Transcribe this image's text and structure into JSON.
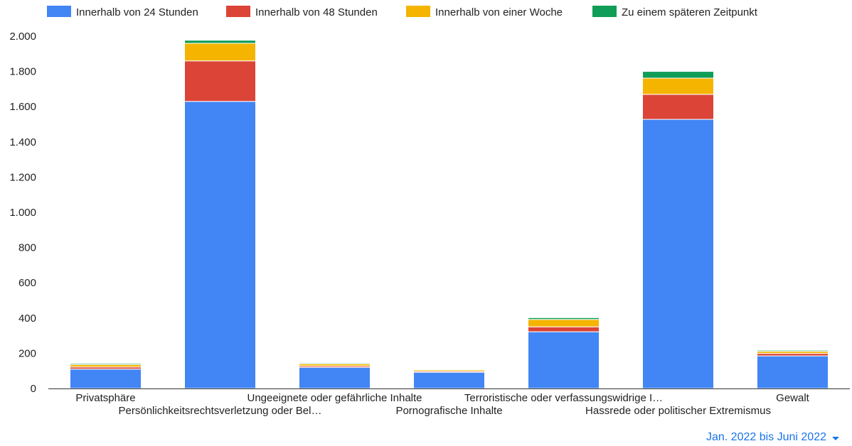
{
  "chart_data": {
    "type": "bar",
    "stacked": true,
    "categories": [
      "Privatsphäre",
      "Persönlichkeitsrechtsverletzung oder Bel…",
      "Ungeeignete oder gefährliche Inhalte",
      "Pornografische Inhalte",
      "Terroristische oder verfassungswidrige I…",
      "Hassrede oder politischer Extremismus",
      "Gewalt"
    ],
    "series": [
      {
        "name": "Innerhalb von 24 Stunden",
        "color": "#4285f4",
        "values": [
          110,
          1630,
          120,
          92,
          322,
          1528,
          185
        ]
      },
      {
        "name": "Innerhalb von 48 Stunden",
        "color": "#db4437",
        "values": [
          12,
          230,
          8,
          6,
          28,
          142,
          14
        ]
      },
      {
        "name": "Innerhalb von einer Woche",
        "color": "#f4b400",
        "values": [
          14,
          100,
          12,
          8,
          42,
          92,
          12
        ]
      },
      {
        "name": "Zu einem späteren Zeitpunkt",
        "color": "#0f9d58",
        "values": [
          6,
          17,
          5,
          4,
          10,
          38,
          6
        ]
      }
    ],
    "ylim": [
      0,
      2000
    ],
    "yticks": [
      0,
      200,
      400,
      600,
      800,
      1000,
      1200,
      1400,
      1600,
      1800,
      2000
    ],
    "ytick_labels": [
      "0",
      "200",
      "400",
      "600",
      "800",
      "1.000",
      "1.200",
      "1.400",
      "1.600",
      "1.800",
      "2.000"
    ],
    "legend_position": "top",
    "grid": false
  },
  "period_selector": {
    "label": "Jan. 2022 bis Juni 2022"
  }
}
